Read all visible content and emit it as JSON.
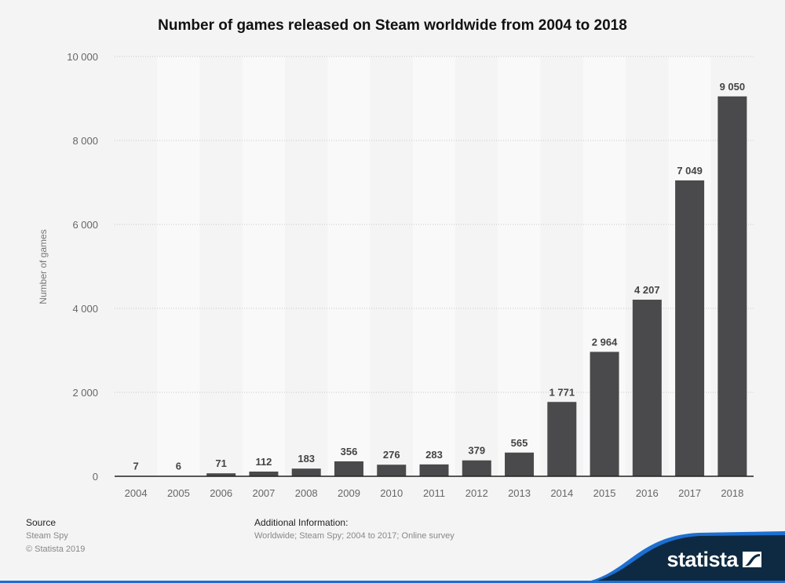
{
  "title": "Number of games released on Steam worldwide from 2004 to 2018",
  "chart_data": {
    "type": "bar",
    "title": "Number of games released on Steam worldwide from 2004 to 2018",
    "xlabel": "",
    "ylabel": "Number of games",
    "categories": [
      "2004",
      "2005",
      "2006",
      "2007",
      "2008",
      "2009",
      "2010",
      "2011",
      "2012",
      "2013",
      "2014",
      "2015",
      "2016",
      "2017",
      "2018"
    ],
    "values": [
      7,
      6,
      71,
      112,
      183,
      356,
      276,
      283,
      379,
      565,
      1771,
      2964,
      4207,
      7049,
      9050
    ],
    "value_labels": [
      "7",
      "6",
      "71",
      "112",
      "183",
      "356",
      "276",
      "283",
      "379",
      "565",
      "1 771",
      "2 964",
      "4 207",
      "7 049",
      "9 050"
    ],
    "ylim": [
      0,
      10000
    ],
    "yticks": [
      0,
      2000,
      4000,
      6000,
      8000,
      10000
    ],
    "ytick_labels": [
      "0",
      "2 000",
      "4 000",
      "6 000",
      "8 000",
      "10 000"
    ],
    "grid": true,
    "legend": "none",
    "bar_color": "#4a4a4c"
  },
  "footer": {
    "source_heading": "Source",
    "source_lines": [
      "Steam Spy",
      "© Statista 2019"
    ],
    "additional_heading": "Additional Information:",
    "additional_text": "Worldwide; Steam Spy; 2004 to 2017; Online survey"
  },
  "logo": {
    "text": "statista",
    "bg_color": "#0d2a42",
    "accent_color": "#1d6fd1"
  }
}
